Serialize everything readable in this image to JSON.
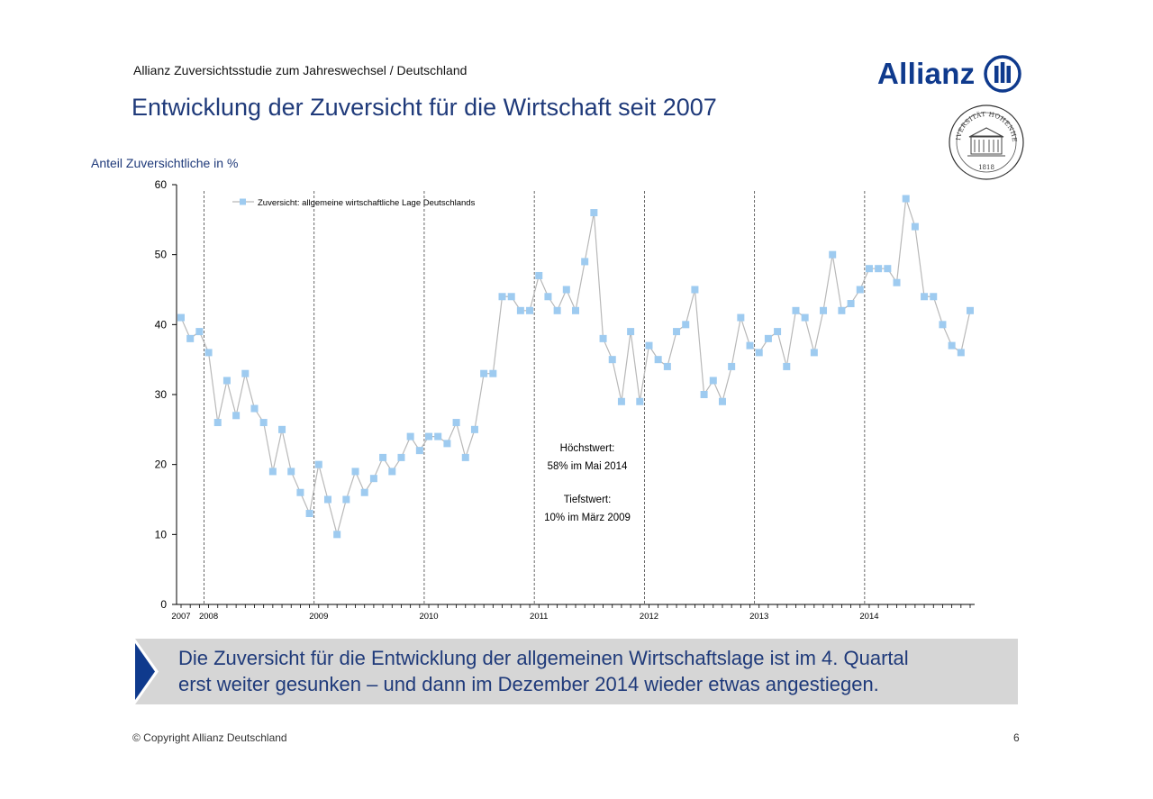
{
  "header": {
    "subtitle": "Allianz Zuversichtsstudie zum Jahreswechsel / Deutschland",
    "title": "Entwicklung der Zuversicht für die Wirtschaft seit 2007",
    "logo_text": "Allianz",
    "seal_top_text": "UNIVERSITÄT HOHENHEIM",
    "seal_year": "1818"
  },
  "colors": {
    "brand_blue": "#0f3a8d",
    "title_blue": "#1f3a7a",
    "marker": "#9ecbf0",
    "line": "#b8b8b8",
    "banner_bg": "#d6d6d6"
  },
  "chart_data": {
    "type": "line",
    "ylabel": "Anteil Zuversichtliche in %",
    "xlabel": "",
    "ylim": [
      0,
      60
    ],
    "yticks": [
      0,
      10,
      20,
      30,
      40,
      50,
      60
    ],
    "year_labels": [
      {
        "label": "2007",
        "index": 0
      },
      {
        "label": "2008",
        "index": 3
      },
      {
        "label": "2009",
        "index": 15
      },
      {
        "label": "2010",
        "index": 27
      },
      {
        "label": "2011",
        "index": 39
      },
      {
        "label": "2012",
        "index": 51
      },
      {
        "label": "2013",
        "index": 63
      },
      {
        "label": "2014",
        "index": 75
      }
    ],
    "year_dividers": [
      2.5,
      14.5,
      26.5,
      38.5,
      50.5,
      62.5,
      74.5
    ],
    "legend": "top-left",
    "series": [
      {
        "name": "Zuversicht: allgemeine wirtschaftliche Lage Deutschlands",
        "values": [
          41,
          38,
          39,
          36,
          26,
          32,
          27,
          33,
          28,
          26,
          19,
          25,
          19,
          16,
          13,
          20,
          15,
          10,
          15,
          19,
          16,
          18,
          21,
          19,
          21,
          24,
          22,
          24,
          24,
          23,
          26,
          21,
          25,
          33,
          33,
          44,
          44,
          42,
          42,
          47,
          44,
          42,
          45,
          42,
          49,
          56,
          38,
          35,
          29,
          39,
          29,
          37,
          35,
          34,
          39,
          40,
          45,
          30,
          32,
          29,
          34,
          41,
          37,
          36,
          38,
          39,
          34,
          42,
          41,
          36,
          42,
          50,
          42,
          43,
          45,
          48,
          48,
          48,
          46,
          58,
          54,
          44,
          44,
          40,
          37,
          36,
          42
        ]
      }
    ],
    "annotations": [
      {
        "line1": "Höchstwert:",
        "line2": "58% im Mai 2014"
      },
      {
        "line1": "Tiefstwert:",
        "line2": "10% im März 2009"
      }
    ]
  },
  "banner": {
    "line1": "Die Zuversicht für die Entwicklung der allgemeinen Wirtschaftslage ist im 4. Quartal",
    "line2": "erst weiter gesunken – und dann im Dezember 2014 wieder etwas angestiegen."
  },
  "footer": {
    "copyright": "© Copyright Allianz Deutschland",
    "page_number": "6"
  }
}
